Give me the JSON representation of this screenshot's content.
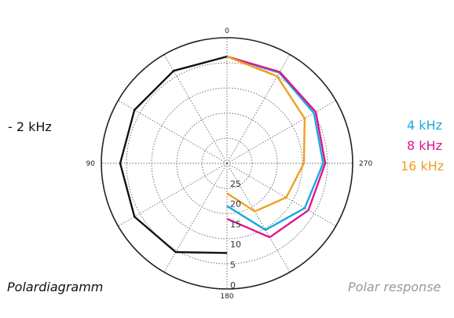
{
  "chart_data": {
    "type": "polar",
    "angle_ticks": [
      "0",
      "90",
      "270",
      "180"
    ],
    "radial_ticks": [
      "25",
      "20",
      "15",
      "10",
      "5",
      "0"
    ],
    "radial_range_db": [
      -25,
      0
    ],
    "rings": 5,
    "grid": true,
    "angle_unit": "deg",
    "angle_step": 30,
    "series": [
      {
        "name": "- 2 kHz",
        "color": "#111111",
        "angles": [
          0,
          30,
          60,
          90,
          120,
          150,
          180
        ],
        "level_db": [
          0,
          0,
          0,
          0,
          0,
          -1,
          -4
        ]
      },
      {
        "name": "4 kHz",
        "color": "#1aa7e0",
        "angles": [
          0,
          30,
          60,
          90,
          120,
          150,
          180
        ],
        "level_db": [
          0,
          -0.5,
          -1.5,
          -2.5,
          -4,
          -7,
          -15
        ]
      },
      {
        "name": "8 kHz",
        "color": "#e0148c",
        "angles": [
          0,
          30,
          60,
          90,
          120,
          150,
          180
        ],
        "level_db": [
          0,
          -0.3,
          -1,
          -2,
          -3,
          -5,
          -12
        ]
      },
      {
        "name": "16 kHz",
        "color": "#f0a020",
        "angles": [
          0,
          30,
          60,
          90,
          120,
          150,
          180
        ],
        "level_db": [
          0,
          -1.5,
          -4,
          -7,
          -9,
          -12,
          -18
        ]
      }
    ]
  },
  "labels": {
    "left_series": "- 2 kHz",
    "right_series": [
      "4 kHz",
      "8 kHz",
      "16 kHz"
    ],
    "caption_left": "Polardiagramm",
    "caption_right": "Polar response"
  },
  "colors": {
    "grid": "#555555",
    "black_series": "#111111",
    "blue_series": "#1aa7e0",
    "magenta_series": "#e0148c",
    "orange_series": "#f0a020",
    "caption_right": "#999999"
  }
}
